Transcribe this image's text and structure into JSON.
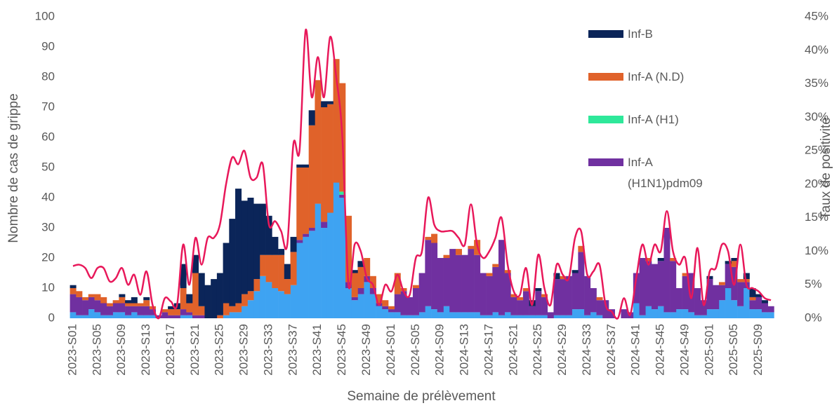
{
  "chart_data": {
    "type": "bar",
    "stacked": true,
    "y_label": "Nombre de cas de grippe",
    "y2_label": "Taux de positivité",
    "x_label": "Semaine de prélèvement",
    "categories": [
      "2023-S01",
      null,
      null,
      null,
      "2023-S05",
      null,
      null,
      null,
      "2023-S09",
      null,
      null,
      null,
      "2023-S13",
      null,
      null,
      null,
      "2023-S17",
      null,
      null,
      null,
      "2023-S21",
      null,
      null,
      null,
      "2023-S25",
      null,
      null,
      null,
      "2023-S29",
      null,
      null,
      null,
      "2023-S33",
      null,
      null,
      null,
      "2023-S37",
      null,
      null,
      null,
      "2023-S41",
      null,
      null,
      null,
      "2023-S45",
      null,
      null,
      null,
      "2023-S49",
      null,
      null,
      null,
      "2024-S01",
      null,
      null,
      null,
      "2024-S05",
      null,
      null,
      null,
      "2024-S09",
      null,
      null,
      null,
      "2024-S13",
      null,
      null,
      null,
      "2024-S17",
      null,
      null,
      null,
      "2024-S21",
      null,
      null,
      null,
      "2024-S25",
      null,
      null,
      null,
      "2024-S29",
      null,
      null,
      null,
      "2024-S33",
      null,
      null,
      null,
      "2024-S37",
      null,
      null,
      null,
      "2024-S41",
      null,
      null,
      null,
      "2024-S45",
      null,
      null,
      null,
      "2024-S49",
      null,
      null,
      null,
      "2025-S01",
      null,
      null,
      null,
      "2025-S05",
      null,
      null,
      null,
      "2025-S09",
      null,
      null
    ],
    "series": [
      {
        "name": null,
        "color": "#3ea3f2",
        "values": [
          2,
          1,
          1,
          3,
          2,
          1,
          1,
          2,
          2,
          1,
          2,
          1,
          1,
          1,
          0,
          0,
          0,
          0,
          1,
          1,
          0,
          0,
          0,
          0,
          0,
          1,
          2,
          2,
          4,
          6,
          9,
          14,
          12,
          10,
          9,
          8,
          11,
          25,
          27,
          29,
          38,
          30,
          35,
          45,
          40,
          10,
          6,
          8,
          12,
          8,
          4,
          3,
          2,
          2,
          1,
          1,
          1,
          2,
          4,
          3,
          2,
          4,
          2,
          2,
          2,
          2,
          2,
          1,
          1,
          2,
          1,
          2,
          1,
          1,
          1,
          1,
          1,
          1,
          0,
          1,
          1,
          1,
          3,
          3,
          1,
          2,
          1,
          0,
          0,
          0,
          0,
          0,
          5,
          1,
          4,
          3,
          4,
          2,
          2,
          3,
          3,
          2,
          1,
          1,
          3,
          3,
          6,
          10,
          6,
          4,
          10,
          3,
          3,
          2,
          2
        ]
      },
      {
        "name": "Inf-A (H1N1)pdm09",
        "color": "#7030a0",
        "values": [
          6,
          6,
          5,
          4,
          4,
          4,
          3,
          3,
          3,
          3,
          2,
          3,
          3,
          2,
          1,
          2,
          1,
          1,
          2,
          1,
          1,
          1,
          0,
          0,
          0,
          0,
          0,
          0,
          0,
          0,
          0,
          0,
          0,
          0,
          0,
          0,
          0,
          1,
          1,
          1,
          0,
          2,
          0,
          0,
          1,
          2,
          1,
          2,
          2,
          2,
          1,
          1,
          1,
          6,
          8,
          6,
          9,
          13,
          22,
          22,
          18,
          16,
          21,
          19,
          19,
          21,
          19,
          14,
          13,
          15,
          25,
          13,
          6,
          5,
          8,
          3,
          8,
          6,
          2,
          12,
          12,
          13,
          12,
          19,
          13,
          8,
          5,
          6,
          3,
          0,
          3,
          2,
          10,
          19,
          15,
          15,
          15,
          28,
          17,
          7,
          11,
          13,
          9,
          5,
          10,
          8,
          5,
          8,
          11,
          8,
          2,
          3,
          4,
          3,
          2
        ]
      },
      {
        "name": "Inf-A (H1)",
        "color": "#2ee89a",
        "values": [
          0,
          0,
          0,
          0,
          0,
          0,
          0,
          0,
          0,
          0,
          0,
          0,
          0,
          0,
          0,
          0,
          0,
          0,
          0,
          0,
          0,
          0,
          0,
          0,
          0,
          0,
          0,
          0,
          0,
          0,
          0,
          0,
          0,
          0,
          0,
          0,
          0,
          0,
          0,
          0,
          0,
          0,
          0,
          0,
          1,
          0,
          0,
          0,
          0,
          0,
          0,
          0,
          0,
          0,
          0,
          0,
          0,
          0,
          0,
          0,
          0,
          0,
          0,
          0,
          0,
          0,
          0,
          0,
          0,
          0,
          0,
          0,
          0,
          0,
          0,
          0,
          0,
          0,
          0,
          0,
          0,
          0,
          0,
          0,
          0,
          0,
          0,
          0,
          0,
          0,
          0,
          0,
          0,
          0,
          0,
          0,
          0,
          0,
          0,
          0,
          0,
          0,
          0,
          0,
          0,
          0,
          0,
          0,
          0,
          0,
          0,
          0,
          0,
          0,
          0
        ]
      },
      {
        "name": "Inf-A (N.D)",
        "color": "#e0622a",
        "values": [
          2,
          2,
          1,
          1,
          2,
          2,
          1,
          1,
          2,
          1,
          1,
          1,
          2,
          1,
          0,
          1,
          2,
          2,
          7,
          3,
          14,
          3,
          0,
          0,
          1,
          4,
          2,
          3,
          4,
          3,
          4,
          7,
          9,
          11,
          12,
          5,
          11,
          24,
          22,
          34,
          41,
          38,
          36,
          41,
          36,
          22,
          8,
          7,
          6,
          4,
          3,
          2,
          1,
          7,
          1,
          0,
          1,
          0,
          1,
          3,
          0,
          1,
          0,
          2,
          0,
          1,
          5,
          0,
          1,
          1,
          0,
          1,
          1,
          1,
          1,
          0,
          0,
          1,
          0,
          0,
          1,
          0,
          0,
          2,
          0,
          0,
          1,
          0,
          0,
          0,
          0,
          0,
          0,
          0,
          1,
          0,
          0,
          0,
          1,
          0,
          1,
          0,
          0,
          0,
          0,
          0,
          1,
          0,
          2,
          1,
          1,
          1,
          0,
          0,
          0
        ]
      },
      {
        "name": "Inf-B",
        "color": "#0b2559",
        "values": [
          1,
          0,
          0,
          0,
          0,
          0,
          0,
          0,
          1,
          1,
          2,
          0,
          1,
          0,
          0,
          0,
          1,
          2,
          8,
          3,
          6,
          11,
          11,
          13,
          14,
          20,
          29,
          38,
          31,
          31,
          25,
          17,
          13,
          6,
          2,
          5,
          5,
          1,
          1,
          5,
          0,
          2,
          1,
          0,
          0,
          0,
          1,
          2,
          0,
          0,
          0,
          0,
          0,
          0,
          0,
          0,
          0,
          0,
          0,
          0,
          0,
          0,
          0,
          0,
          0,
          0,
          0,
          0,
          0,
          0,
          0,
          0,
          0,
          0,
          0,
          2,
          1,
          0,
          0,
          2,
          0,
          0,
          1,
          0,
          0,
          0,
          0,
          0,
          0,
          0,
          0,
          0,
          0,
          0,
          0,
          0,
          1,
          0,
          0,
          0,
          0,
          0,
          0,
          0,
          1,
          0,
          0,
          1,
          1,
          0,
          2,
          3,
          1,
          1,
          0
        ]
      },
      {
        "name": null,
        "type": "line",
        "axis": "y2",
        "color": "#e8185a",
        "values": [
          7.8,
          8,
          7.5,
          6,
          7.5,
          7.5,
          5.5,
          6,
          7.5,
          5,
          6.5,
          3.5,
          7,
          2,
          0,
          3,
          2.5,
          2,
          11,
          5,
          12,
          8,
          12,
          12,
          14,
          20,
          24,
          23,
          25,
          21,
          21,
          23,
          14,
          14.5,
          13,
          11,
          26,
          25,
          43,
          33,
          39,
          33,
          42,
          36,
          27,
          5,
          11,
          10,
          6,
          5,
          2,
          5,
          4,
          6.5,
          4,
          3.5,
          9,
          10,
          18,
          14,
          13,
          13,
          13,
          12,
          11,
          17,
          11,
          9,
          10,
          12,
          15,
          8,
          4,
          3.5,
          7.5,
          2,
          9.5,
          4.5,
          2,
          8,
          6.5,
          6,
          12,
          13,
          6.5,
          7,
          8,
          2,
          1,
          0,
          3,
          0.5,
          6,
          11,
          8,
          11,
          10,
          16,
          10,
          8,
          9,
          3,
          10.5,
          2,
          7,
          7.5,
          11,
          10,
          5,
          11,
          5,
          4.5,
          4,
          3,
          2.7
        ]
      }
    ],
    "ylim": [
      0,
      100
    ],
    "yticks": [
      0,
      10,
      20,
      30,
      40,
      50,
      60,
      70,
      80,
      90,
      100
    ],
    "y2lim": [
      0,
      45
    ],
    "y2ticks": [
      {
        "value": 0,
        "label": "0%"
      },
      {
        "value": 5,
        "label": "5%"
      },
      {
        "value": 10,
        "label": "10%"
      },
      {
        "value": 15,
        "label": "15%"
      },
      {
        "value": 20,
        "label": "20%"
      },
      {
        "value": 25,
        "label": "25%"
      },
      {
        "value": 30,
        "label": "30%"
      },
      {
        "value": 35,
        "label": "35%"
      },
      {
        "value": 40,
        "label": "40%"
      },
      {
        "value": 45,
        "label": "45%"
      }
    ],
    "grid": false,
    "legend": "top-right"
  }
}
